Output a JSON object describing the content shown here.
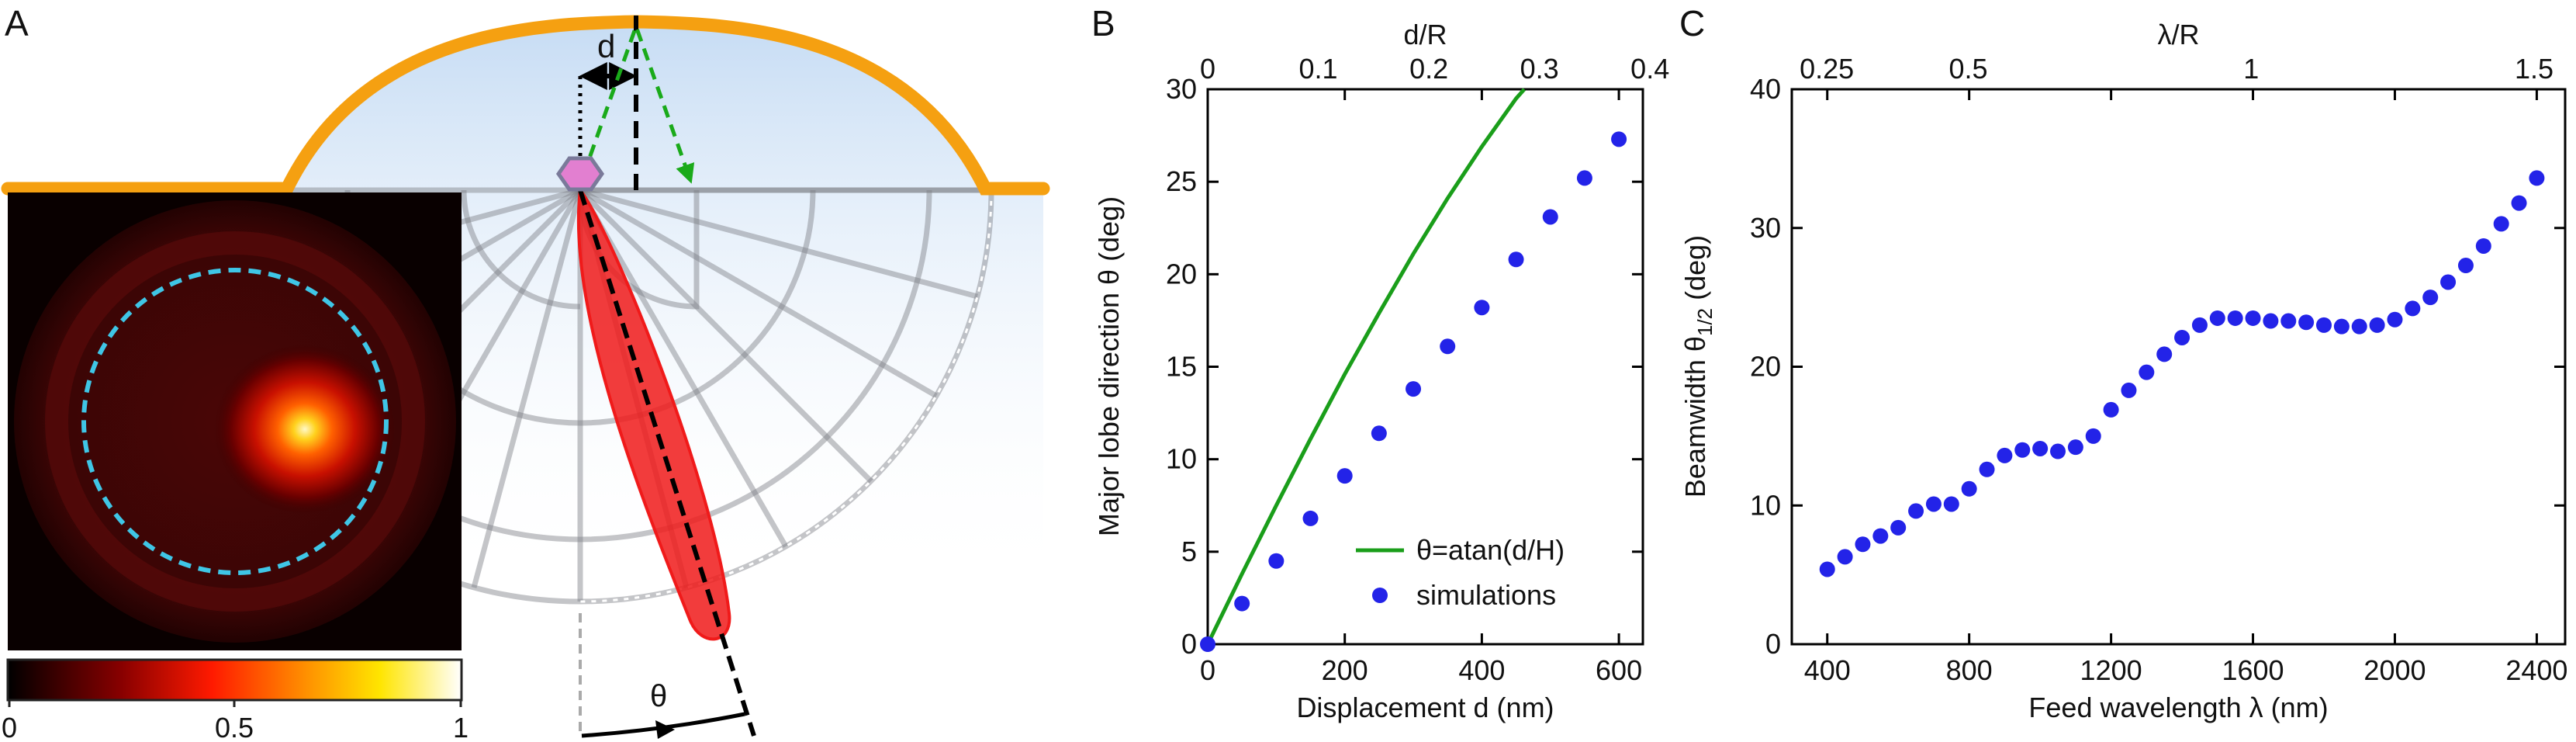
{
  "panel_a": {
    "label": "A",
    "d_label": "d",
    "theta_label": "θ",
    "colorbar_ticks": [
      "0",
      "0.5",
      "1"
    ],
    "colors": {
      "reflector": "#f5a011",
      "lobe": "#f01a1a",
      "ray": "#1aaa1a",
      "emitter": "#e27fd0",
      "ring": "#3fc6e6",
      "sky": "#d8e8f8"
    }
  },
  "chart_data": [
    {
      "panel": "B",
      "type": "scatter",
      "xlabel": "Displacement d (nm)",
      "ylabel": "Major lobe direction θ (deg)",
      "top_xlabel": "d/R",
      "xlim": [
        0,
        635
      ],
      "ylim": [
        0,
        30
      ],
      "xticks": [
        "0",
        "200",
        "400",
        "600"
      ],
      "yticks": [
        "0",
        "5",
        "10",
        "15",
        "20",
        "25",
        "30"
      ],
      "top_xticks": [
        "0",
        "0.1",
        "0.2",
        "0.3",
        "0.4"
      ],
      "legend_position": "bottom-right",
      "series": [
        {
          "name": "θ=atan(d/H)",
          "kind": "line",
          "color": "#1a9e1a",
          "x": [
            0,
            50,
            100,
            150,
            200,
            250,
            300,
            350,
            400,
            450,
            462
          ],
          "y": [
            0,
            3.8,
            7.5,
            11.1,
            14.6,
            17.9,
            21.1,
            24.1,
            26.9,
            29.5,
            30
          ]
        },
        {
          "name": "simulations",
          "kind": "points",
          "color": "#2323e8",
          "x": [
            0,
            50,
            100,
            150,
            200,
            250,
            300,
            350,
            400,
            450,
            500,
            550,
            600
          ],
          "y": [
            0,
            2.2,
            4.5,
            6.8,
            9.1,
            11.4,
            13.8,
            16.1,
            18.2,
            20.8,
            23.1,
            25.2,
            27.3
          ]
        }
      ]
    },
    {
      "panel": "C",
      "type": "scatter",
      "xlabel": "Feed wavelength λ (nm)",
      "ylabel_main": "Beamwidth θ",
      "ylabel_sub": "1/2",
      "ylabel_unit": " (deg)",
      "top_xlabel": "λ/R",
      "xlim": [
        300,
        2480
      ],
      "ylim": [
        0,
        40
      ],
      "xticks": [
        "400",
        "800",
        "1200",
        "1600",
        "2000",
        "2400"
      ],
      "yticks": [
        "0",
        "10",
        "20",
        "30",
        "40"
      ],
      "top_xticks": [
        "0.25",
        "0.5",
        "1",
        "1.5"
      ],
      "series": [
        {
          "name": "",
          "kind": "points",
          "color": "#2323e8",
          "x": [
            400,
            450,
            500,
            550,
            600,
            650,
            700,
            750,
            800,
            850,
            900,
            950,
            1000,
            1050,
            1100,
            1150,
            1200,
            1250,
            1300,
            1350,
            1400,
            1450,
            1500,
            1550,
            1600,
            1650,
            1700,
            1750,
            1800,
            1850,
            1900,
            1950,
            2000,
            2050,
            2100,
            2150,
            2200,
            2250,
            2300,
            2350,
            2400
          ],
          "y": [
            5.4,
            6.3,
            7.2,
            7.8,
            8.4,
            9.6,
            10.1,
            10.1,
            11.2,
            12.6,
            13.6,
            14.0,
            14.1,
            13.9,
            14.2,
            15.0,
            16.9,
            18.3,
            19.6,
            20.9,
            22.1,
            23.0,
            23.5,
            23.5,
            23.5,
            23.3,
            23.3,
            23.2,
            23.0,
            22.9,
            22.9,
            23.0,
            23.4,
            24.2,
            25.0,
            26.1,
            27.3,
            28.7,
            30.3,
            31.8,
            33.6
          ]
        }
      ]
    }
  ]
}
